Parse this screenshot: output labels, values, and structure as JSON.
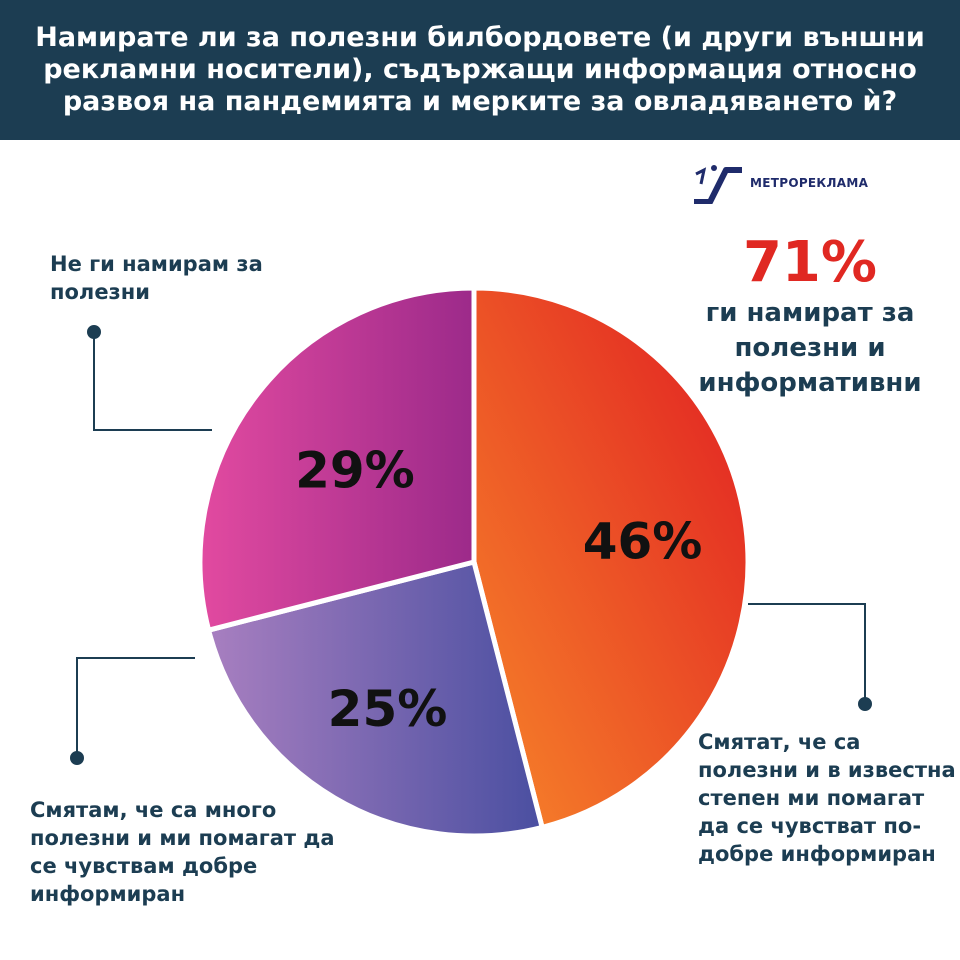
{
  "title": "Намирате ли за полезни билбордовете (и други външни рекламни носители), съдържащи информация относно развоя на пандемията и мерките за овладяването ѝ?",
  "logo": {
    "text": "МЕТРОРЕКЛАМА",
    "icon": "metro-escalator-icon",
    "color": "#1f2b6b"
  },
  "highlight": {
    "value": "71%",
    "text": "ги намират за полезни и информативни",
    "color": "#e02822"
  },
  "chart_data": {
    "type": "pie",
    "title": "Намирате ли за полезни билбордовете (и други външни рекламни носители), съдържащи информация относно развоя на пандемията и мерките за овладяването ѝ?",
    "slices": [
      {
        "label": "Смятат, че са полезни и в известна степен ми помагат да се чувстват по-добре информиран",
        "value": 46,
        "display": "46%",
        "color_start": "#f7862a",
        "color_end": "#e01c22"
      },
      {
        "label": "Смятам, че са много полезни и ми помагат да се чувствам добре информиран",
        "value": 25,
        "display": "25%",
        "color_start": "#a87fc0",
        "color_end": "#4a4fa1"
      },
      {
        "label": "Не ги намирам за полезни",
        "value": 29,
        "display": "29%",
        "color_start": "#e24aa0",
        "color_end": "#9c2a8a"
      }
    ],
    "legend": "none",
    "header_color": "#1c3d52"
  }
}
